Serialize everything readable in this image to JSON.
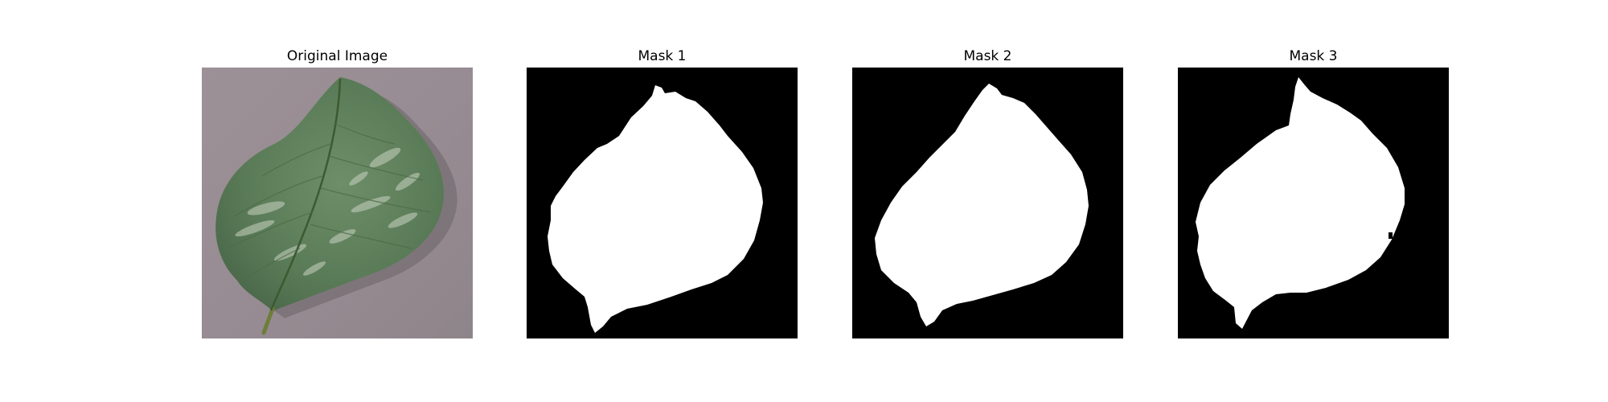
{
  "figure": {
    "panels": [
      {
        "title": "Original Image"
      },
      {
        "title": "Mask 1"
      },
      {
        "title": "Mask 2"
      },
      {
        "title": "Mask 3"
      }
    ]
  },
  "colors": {
    "background": "#ffffff",
    "mask_background": "#000000",
    "mask_foreground": "#ffffff",
    "leaf_green": "#5b7e5a",
    "surface_gray": "#9a9096"
  }
}
